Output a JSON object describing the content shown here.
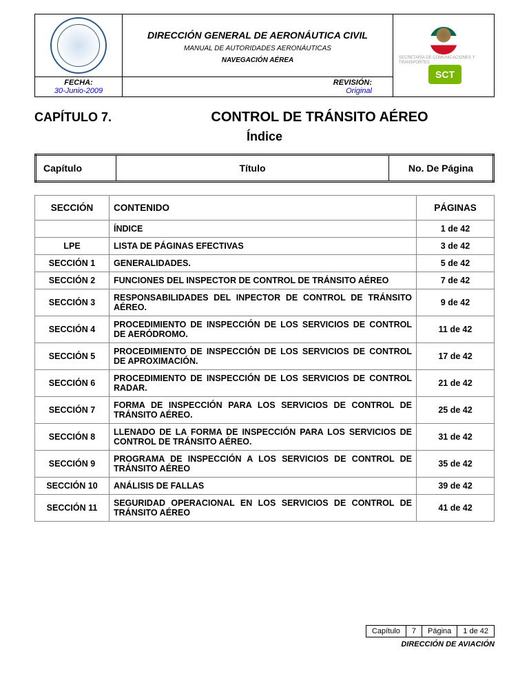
{
  "header": {
    "agency": "DIRECCIÓN GENERAL DE AERONÁUTICA CIVIL",
    "manual": "MANUAL DE AUTORIDADES AERONÁUTICAS",
    "nav": "NAVEGACIÓN AÉREA",
    "sct": "SCT",
    "secretaria": "SECRETARÍA DE\nCOMUNICACIONES\nY TRANSPORTES",
    "fecha_label": "FECHA:",
    "fecha_value": "30-Junio-2009",
    "revision_label": "REVISIÓN:",
    "revision_value": "Original"
  },
  "title": {
    "chapter_label": "CAPÍTULO 7.",
    "chapter_title": "CONTROL DE TRÁNSITO AÉREO",
    "index_label": "Índice"
  },
  "index_header": {
    "capitulo": "Capítulo",
    "titulo": "Título",
    "pagina": "No. De Página"
  },
  "content_header": {
    "seccion": "SECCIÓN",
    "contenido": "CONTENIDO",
    "paginas": "PÁGINAS"
  },
  "rows": [
    {
      "sec": "",
      "title": "ÍNDICE",
      "pag": "1 de 42",
      "justify": false
    },
    {
      "sec": "LPE",
      "title": "LISTA DE PÁGINAS EFECTIVAS",
      "pag": "3 de 42",
      "justify": false
    },
    {
      "sec": "SECCIÓN 1",
      "title": "GENERALIDADES.",
      "pag": "5 de 42",
      "justify": false
    },
    {
      "sec": "SECCIÓN 2",
      "title": "FUNCIONES DEL INSPECTOR DE CONTROL DE TRÁNSITO AÉREO",
      "pag": "7 de 42",
      "justify": true
    },
    {
      "sec": "SECCIÓN 3",
      "title": "RESPONSABILIDADES DEL INPECTOR DE CONTROL DE TRÁNSITO AÉREO.",
      "pag": "9 de 42",
      "justify": true
    },
    {
      "sec": "SECCIÓN 4",
      "title": "PROCEDIMIENTO DE INSPECCIÓN DE LOS SERVICIOS DE CONTROL DE AERÓDROMO.",
      "pag": "11 de 42",
      "justify": true
    },
    {
      "sec": "SECCIÓN 5",
      "title": "PROCEDIMIENTO DE INSPECCIÓN DE LOS SERVICIOS DE CONTROL DE APROXIMACIÓN.",
      "pag": "17 de 42",
      "justify": true
    },
    {
      "sec": "SECCIÓN 6",
      "title": "PROCEDIMIENTO DE INSPECCIÓN DE LOS SERVICIOS DE CONTROL RADAR.",
      "pag": "21 de 42",
      "justify": true
    },
    {
      "sec": "SECCIÓN 7",
      "title": "FORMA DE INSPECCIÓN PARA LOS SERVICIOS DE CONTROL DE TRÁNSITO AÉREO.",
      "pag": "25 de 42",
      "justify": true
    },
    {
      "sec": "SECCIÓN 8",
      "title": "LLENADO DE LA FORMA DE INSPECCIÓN PARA LOS SERVICIOS DE CONTROL DE TRÁNSITO AÉREO.",
      "pag": "31 de 42",
      "justify": true
    },
    {
      "sec": "SECCIÓN 9",
      "title": "PROGRAMA DE INSPECCIÓN A LOS SERVICIOS DE CONTROL DE TRÁNSITO AÉREO",
      "pag": "35 de 42",
      "justify": true
    },
    {
      "sec": "SECCIÓN 10",
      "title": "ANÁLISIS DE FALLAS",
      "pag": "39 de 42",
      "justify": false
    },
    {
      "sec": "SECCIÓN 11",
      "title": "SEGURIDAD OPERACIONAL EN LOS SERVICIOS DE CONTROL DE TRÁNSITO AÉREO",
      "pag": "41 de 42",
      "justify": true
    }
  ],
  "footer": {
    "capitulo_label": "Capítulo",
    "capitulo_value": "7",
    "pagina_label": "Página",
    "pagina_value": "1 de 42",
    "direccion": "DIRECCIÓN DE AVIACIÓN"
  }
}
